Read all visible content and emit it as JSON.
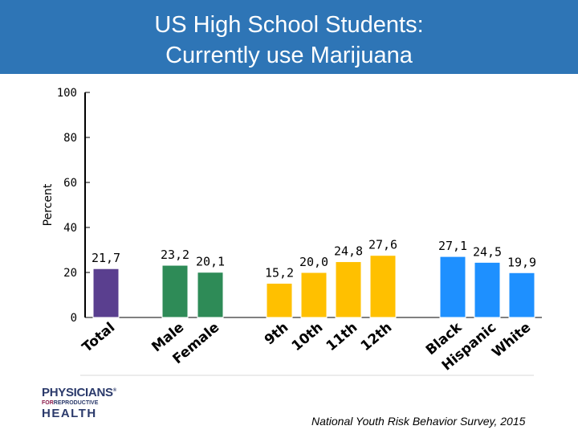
{
  "title_line1": "US High School Students:",
  "title_line2": "Currently use Marijuana",
  "logo": {
    "line1": "PHYSICIANS",
    "line2_for": "FOR",
    "line2_rest": "REPRODUCTIVE",
    "line3": "HEALTH",
    "mark": "®"
  },
  "source": "National Youth Risk Behavior Survey, 2015",
  "chart_data": {
    "type": "bar",
    "ylabel": "Percent",
    "ylim": [
      0,
      100
    ],
    "yticks": [
      0,
      20,
      40,
      60,
      80,
      100
    ],
    "categories": [
      "Total",
      "Male",
      "Female",
      "9th",
      "10th",
      "11th",
      "12th",
      "Black",
      "Hispanic",
      "White"
    ],
    "values": [
      21.7,
      23.2,
      20.1,
      15.2,
      20.0,
      24.8,
      27.6,
      27.1,
      24.5,
      19.9
    ],
    "value_labels": [
      "21,7",
      "23,2",
      "20,1",
      "15,2",
      "20,0",
      "24,8",
      "27,6",
      "27,1",
      "24,5",
      "19,9"
    ],
    "colors": [
      "#5a3f8f",
      "#2e8b57",
      "#2e8b57",
      "#ffc000",
      "#ffc000",
      "#ffc000",
      "#ffc000",
      "#1e90ff",
      "#1e90ff",
      "#1e90ff"
    ],
    "grid": false
  }
}
